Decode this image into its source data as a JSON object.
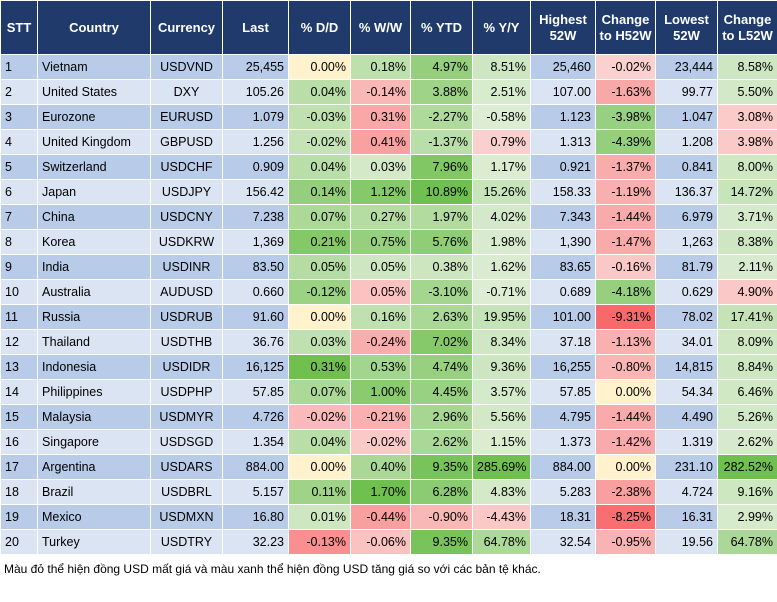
{
  "table": {
    "columns": [
      "STT",
      "Country",
      "Currency",
      "Last",
      "% D/D",
      "% W/W",
      "% YTD",
      "% Y/Y",
      "Highest 52W",
      "Change to H52W",
      "Lowest 52W",
      "Change to L52W"
    ],
    "rows": [
      [
        "1",
        "Vietnam",
        "USDVND",
        "25,455",
        "0.00%",
        "0.18%",
        "4.97%",
        "8.51%",
        "25,460",
        "-0.02%",
        "23,444",
        "8.58%"
      ],
      [
        "2",
        "United States",
        "DXY",
        "105.26",
        "0.04%",
        "-0.14%",
        "3.88%",
        "2.51%",
        "107.00",
        "-1.63%",
        "99.77",
        "5.50%"
      ],
      [
        "3",
        "Eurozone",
        "EURUSD",
        "1.079",
        "-0.03%",
        "0.31%",
        "-2.27%",
        "-0.58%",
        "1.123",
        "-3.98%",
        "1.047",
        "3.08%"
      ],
      [
        "4",
        "United Kingdom",
        "GBPUSD",
        "1.256",
        "-0.02%",
        "0.41%",
        "-1.37%",
        "0.79%",
        "1.313",
        "-4.39%",
        "1.208",
        "3.98%"
      ],
      [
        "5",
        "Switzerland",
        "USDCHF",
        "0.909",
        "0.04%",
        "0.03%",
        "7.96%",
        "1.17%",
        "0.921",
        "-1.37%",
        "0.841",
        "8.00%"
      ],
      [
        "6",
        "Japan",
        "USDJPY",
        "156.42",
        "0.14%",
        "1.12%",
        "10.89%",
        "15.26%",
        "158.33",
        "-1.19%",
        "136.37",
        "14.72%"
      ],
      [
        "7",
        "China",
        "USDCNY",
        "7.238",
        "0.07%",
        "0.27%",
        "1.97%",
        "4.02%",
        "7.343",
        "-1.44%",
        "6.979",
        "3.71%"
      ],
      [
        "8",
        "Korea",
        "USDKRW",
        "1,369",
        "0.21%",
        "0.75%",
        "5.76%",
        "1.98%",
        "1,390",
        "-1.47%",
        "1,263",
        "8.38%"
      ],
      [
        "9",
        "India",
        "USDINR",
        "83.50",
        "0.05%",
        "0.05%",
        "0.38%",
        "1.62%",
        "83.65",
        "-0.16%",
        "81.79",
        "2.11%"
      ],
      [
        "10",
        "Australia",
        "AUDUSD",
        "0.660",
        "-0.12%",
        "0.05%",
        "-3.10%",
        "-0.71%",
        "0.689",
        "-4.18%",
        "0.629",
        "4.90%"
      ],
      [
        "11",
        "Russia",
        "USDRUB",
        "91.60",
        "0.00%",
        "0.16%",
        "2.63%",
        "19.95%",
        "101.00",
        "-9.31%",
        "78.02",
        "17.41%"
      ],
      [
        "12",
        "Thailand",
        "USDTHB",
        "36.76",
        "0.03%",
        "-0.24%",
        "7.02%",
        "8.34%",
        "37.18",
        "-1.13%",
        "34.01",
        "8.09%"
      ],
      [
        "13",
        "Indonesia",
        "USDIDR",
        "16,125",
        "0.31%",
        "0.53%",
        "4.74%",
        "9.36%",
        "16,255",
        "-0.80%",
        "14,815",
        "8.84%"
      ],
      [
        "14",
        "Philippines",
        "USDPHP",
        "57.85",
        "0.07%",
        "1.00%",
        "4.45%",
        "3.57%",
        "57.85",
        "0.00%",
        "54.34",
        "6.46%"
      ],
      [
        "15",
        "Malaysia",
        "USDMYR",
        "4.726",
        "-0.02%",
        "-0.21%",
        "2.96%",
        "5.56%",
        "4.795",
        "-1.44%",
        "4.490",
        "5.26%"
      ],
      [
        "16",
        "Singapore",
        "USDSGD",
        "1.354",
        "0.04%",
        "-0.02%",
        "2.62%",
        "1.15%",
        "1.373",
        "-1.42%",
        "1.319",
        "2.62%"
      ],
      [
        "17",
        "Argentina",
        "USDARS",
        "884.00",
        "0.00%",
        "0.40%",
        "9.35%",
        "285.69%",
        "884.00",
        "0.00%",
        "231.10",
        "282.52%"
      ],
      [
        "18",
        "Brazil",
        "USDBRL",
        "5.157",
        "0.11%",
        "1.70%",
        "6.28%",
        "4.83%",
        "5.283",
        "-2.38%",
        "4.724",
        "9.16%"
      ],
      [
        "19",
        "Mexico",
        "USDMXN",
        "16.80",
        "0.01%",
        "-0.44%",
        "-0.90%",
        "-4.43%",
        "18.31",
        "-8.25%",
        "16.31",
        "2.99%"
      ],
      [
        "20",
        "Turkey",
        "USDTRY",
        "32.23",
        "-0.13%",
        "-0.06%",
        "9.35%",
        "64.78%",
        "32.54",
        "-0.95%",
        "19.56",
        "64.78%"
      ]
    ],
    "footnote": "Màu đỏ thể hiện đồng USD mất giá và màu xanh thể hiện đồng USD tăng giá so với các bản tệ khác."
  }
}
